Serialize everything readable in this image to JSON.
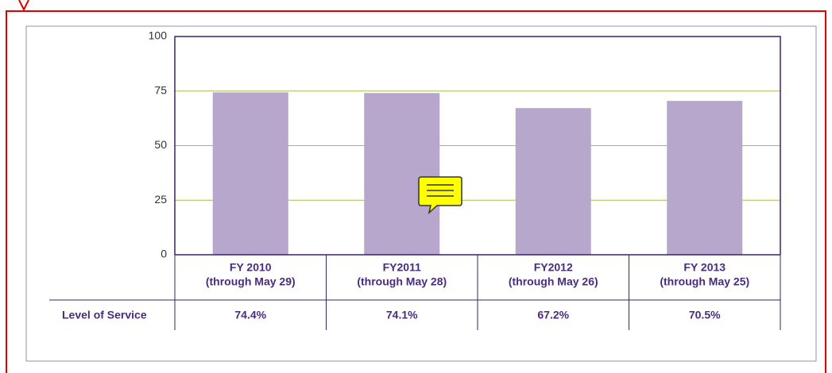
{
  "chart_data": {
    "type": "bar",
    "categories": [
      [
        "FY 2010",
        "(through May 29)"
      ],
      [
        "FY2011",
        "(through May 28)"
      ],
      [
        "FY2012",
        "(through May 26)"
      ],
      [
        "FY 2013",
        "(through May 25)"
      ]
    ],
    "series": [
      {
        "name": "Level of Service",
        "color": "#b7a7cc",
        "values": [
          74.4,
          74.1,
          67.2,
          70.5
        ],
        "value_labels": [
          "74.4%",
          "74.1%",
          "67.2%",
          "70.5%"
        ]
      }
    ],
    "ylim": [
      0,
      100
    ],
    "yticks": [
      0,
      25,
      50,
      75,
      100
    ],
    "grid": true,
    "grid_color": "#a9b94a"
  }
}
